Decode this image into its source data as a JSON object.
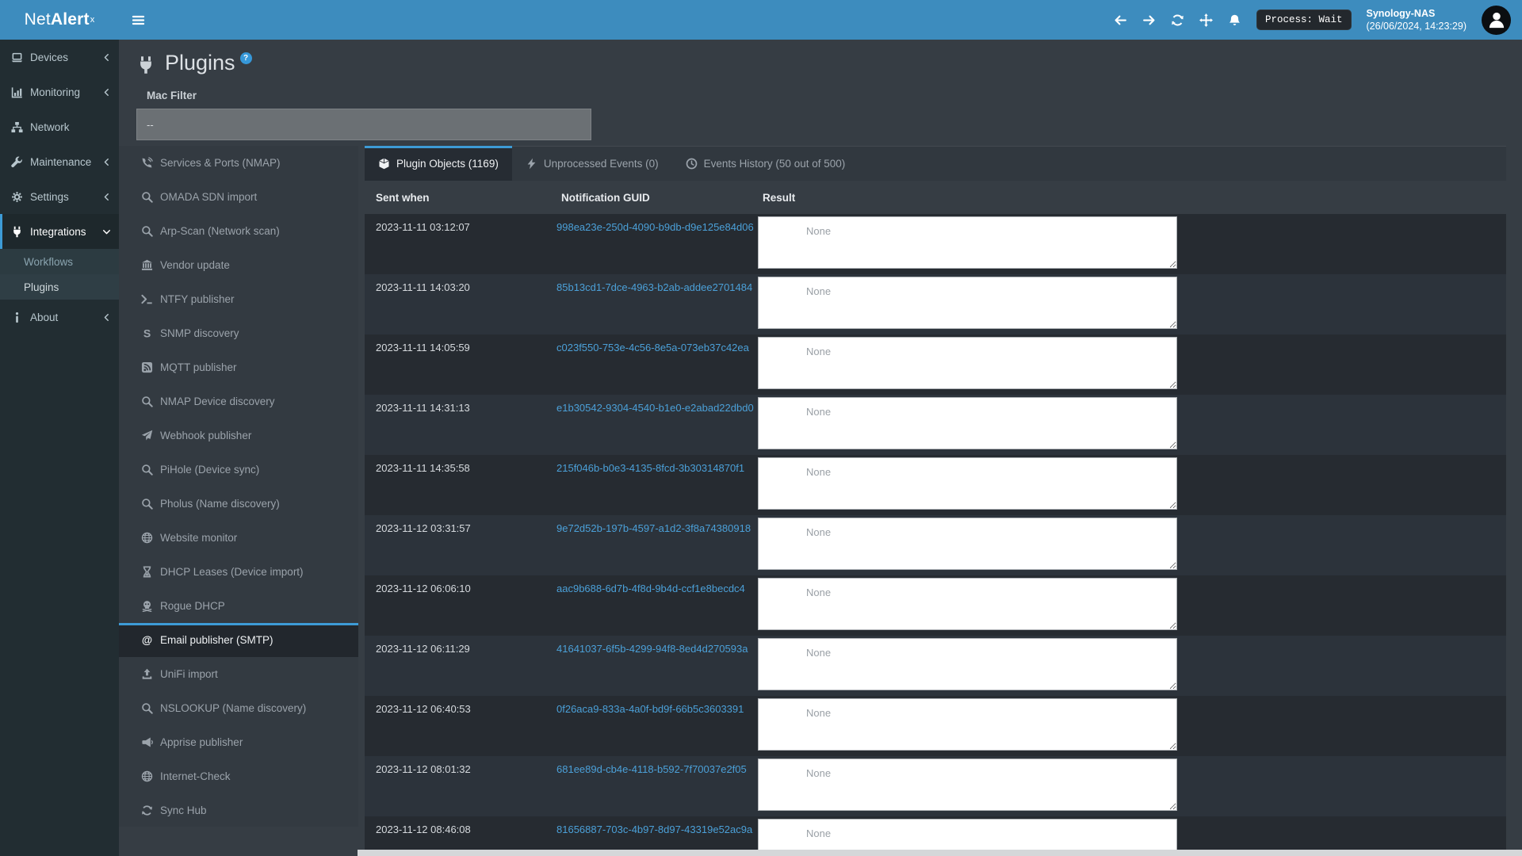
{
  "navbar": {
    "brand": {
      "light": "Net",
      "bold": "Alert",
      "sup": "x"
    },
    "process_badge": "Process: Wait",
    "host": {
      "name": "Synology-NAS",
      "datetime": "(26/06/2024, 14:23:29)"
    }
  },
  "sidebar": {
    "items": [
      {
        "label": "Devices",
        "icon": "laptop-icon",
        "chevron": "left"
      },
      {
        "label": "Monitoring",
        "icon": "chart-icon",
        "chevron": "left"
      },
      {
        "label": "Network",
        "icon": "sitemap-icon",
        "chevron": null
      },
      {
        "label": "Maintenance",
        "icon": "wrench-icon",
        "chevron": "left"
      },
      {
        "label": "Settings",
        "icon": "gear-icon",
        "chevron": "left"
      },
      {
        "label": "Integrations",
        "icon": "plug-icon",
        "chevron": "down",
        "active": true,
        "children": [
          {
            "label": "Workflows",
            "current": false
          },
          {
            "label": "Plugins",
            "current": true
          }
        ]
      },
      {
        "label": "About",
        "icon": "info-icon",
        "chevron": "left"
      }
    ]
  },
  "page": {
    "title": "Plugins",
    "help_badge": "?",
    "mac_filter": {
      "label": "Mac Filter",
      "value": "--"
    }
  },
  "plugin_list": [
    {
      "label": "Services & Ports (NMAP)",
      "icon": "phone-volume-icon"
    },
    {
      "label": "OMADA SDN import",
      "icon": "search-icon"
    },
    {
      "label": "Arp-Scan (Network scan)",
      "icon": "search-icon"
    },
    {
      "label": "Vendor update",
      "icon": "bank-icon"
    },
    {
      "label": "NTFY publisher",
      "icon": "terminal-icon"
    },
    {
      "label": "SNMP discovery",
      "icon": "stripe-s-icon"
    },
    {
      "label": "MQTT publisher",
      "icon": "rss-square-icon"
    },
    {
      "label": "NMAP Device discovery",
      "icon": "search-icon"
    },
    {
      "label": "Webhook publisher",
      "icon": "paper-plane-icon"
    },
    {
      "label": "PiHole (Device sync)",
      "icon": "search-icon"
    },
    {
      "label": "Pholus (Name discovery)",
      "icon": "search-icon"
    },
    {
      "label": "Website monitor",
      "icon": "globe-icon"
    },
    {
      "label": "DHCP Leases (Device import)",
      "icon": "hourglass-icon"
    },
    {
      "label": "Rogue DHCP",
      "icon": "skull-icon"
    },
    {
      "label": "Email publisher (SMTP)",
      "icon": "at-icon",
      "selected": true
    },
    {
      "label": "UniFi import",
      "icon": "upload-icon"
    },
    {
      "label": "NSLOOKUP (Name discovery)",
      "icon": "search-icon"
    },
    {
      "label": "Apprise publisher",
      "icon": "bullhorn-icon"
    },
    {
      "label": "Internet-Check",
      "icon": "globe-icon"
    },
    {
      "label": "Sync Hub",
      "icon": "sync-icon"
    }
  ],
  "tabs": [
    {
      "label": "Plugin Objects (1169)",
      "icon": "cube-icon",
      "active": true
    },
    {
      "label": "Unprocessed Events (0)",
      "icon": "bolt-icon",
      "active": false
    },
    {
      "label": "Events History (50 out of 500)",
      "icon": "clock-icon",
      "active": false
    }
  ],
  "table": {
    "columns": [
      "Sent when",
      "Notification GUID",
      "Result"
    ],
    "result_placeholder": "None",
    "rows": [
      {
        "sent": "2023-11-11 03:12:07",
        "guid": "998ea23e-250d-4090-b9db-d9e125e84d06"
      },
      {
        "sent": "2023-11-11 14:03:20",
        "guid": "85b13cd1-7dce-4963-b2ab-addee2701484"
      },
      {
        "sent": "2023-11-11 14:05:59",
        "guid": "c023f550-753e-4c56-8e5a-073eb37c42ea"
      },
      {
        "sent": "2023-11-11 14:31:13",
        "guid": "e1b30542-9304-4540-b1e0-e2abad22dbd0"
      },
      {
        "sent": "2023-11-11 14:35:58",
        "guid": "215f046b-b0e3-4135-8fcd-3b30314870f1"
      },
      {
        "sent": "2023-11-12 03:31:57",
        "guid": "9e72d52b-197b-4597-a1d2-3f8a74380918"
      },
      {
        "sent": "2023-11-12 06:06:10",
        "guid": "aac9b688-6d7b-4f8d-9b4d-ccf1e8becdc4"
      },
      {
        "sent": "2023-11-12 06:11:29",
        "guid": "41641037-6f5b-4299-94f8-8ed4d270593a"
      },
      {
        "sent": "2023-11-12 06:40:53",
        "guid": "0f26aca9-833a-4a0f-bd9f-66b5c3603391"
      },
      {
        "sent": "2023-11-12 08:01:32",
        "guid": "681ee89d-cb4e-4118-b592-7f70037e2f05"
      },
      {
        "sent": "2023-11-12 08:46:08",
        "guid": "81656887-703c-4b97-8d97-43319e52ac9a"
      }
    ]
  },
  "colors": {
    "navbar": "#3d8cbe",
    "sidebar": "#222d32",
    "accent": "#3d9bd6",
    "link": "#4ba0d8",
    "row_odd": "#262b31",
    "row_even": "#2c333b"
  }
}
